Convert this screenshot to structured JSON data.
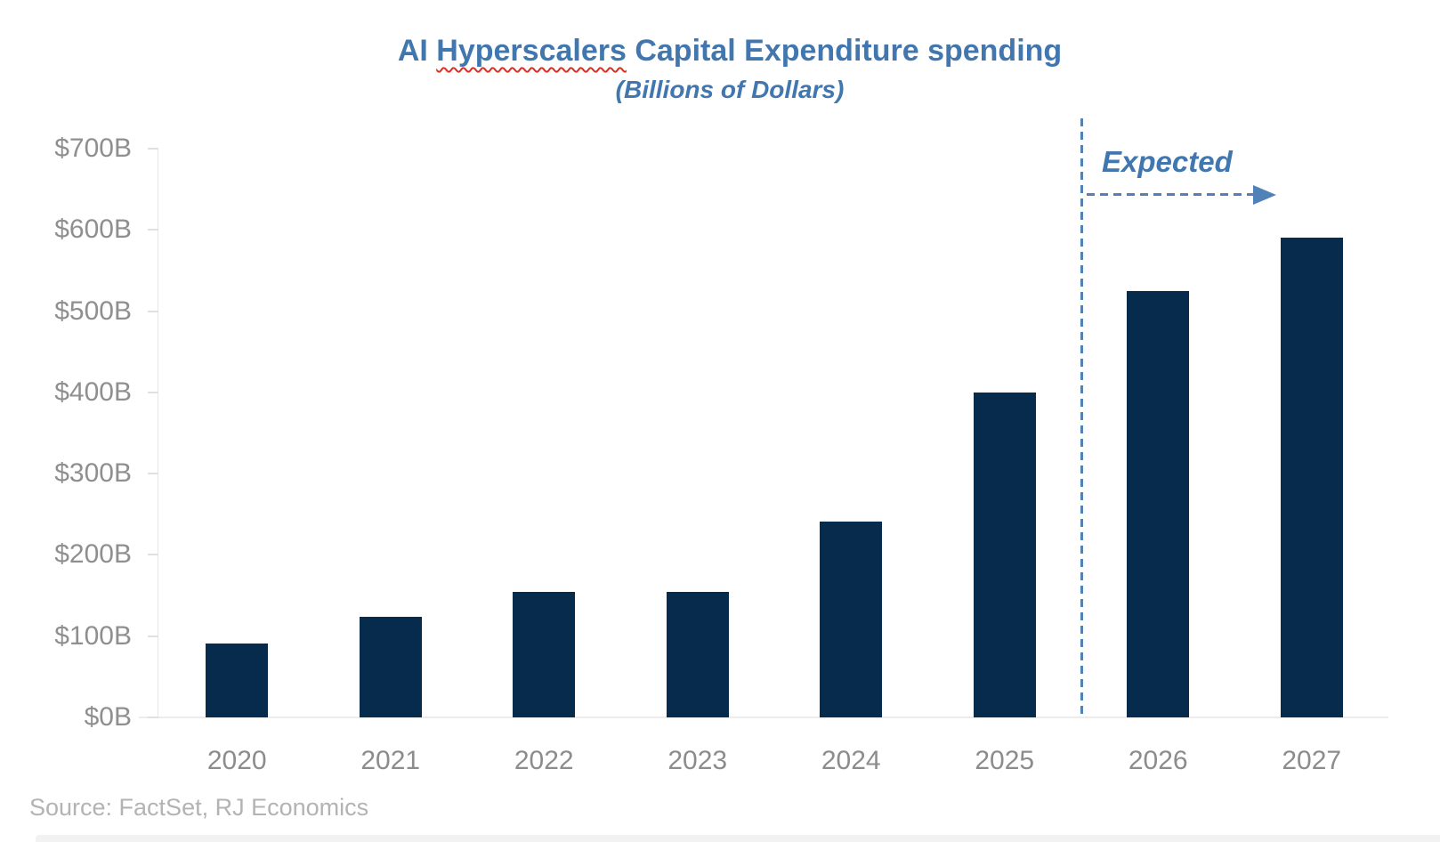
{
  "title": {
    "prefix": "AI ",
    "misspelled_word": "Hyperscalers",
    "suffix": " Capital Expenditure spending",
    "subtitle": "(Billions of Dollars)"
  },
  "source_note": "Source: FactSet, RJ Economics",
  "colors": {
    "bar": "#072B4D",
    "title_blue": "#4177AE",
    "annotation_blue": "#5082B8",
    "axis_label_gray": "#8c8c8c",
    "source_gray": "#b3b3b3",
    "spellcheck_red": "#d93025",
    "axis_line_gray": "#e7e7e7"
  },
  "chart_data": {
    "type": "bar",
    "title": "AI Hyperscalers Capital Expenditure spending",
    "subtitle": "(Billions of Dollars)",
    "xlabel": "",
    "ylabel": "",
    "unit": "billions of US dollars",
    "categories": [
      "2020",
      "2021",
      "2022",
      "2023",
      "2024",
      "2025",
      "2026",
      "2027"
    ],
    "values": [
      91,
      124,
      154,
      155,
      241,
      400,
      525,
      590
    ],
    "ylim": [
      0,
      700
    ],
    "y_tick_step": 100,
    "y_tick_labels": [
      "$0B",
      "$100B",
      "$200B",
      "$300B",
      "$400B",
      "$500B",
      "$600B",
      "$700B"
    ],
    "grid": false,
    "legend": "none",
    "bar_color": "#072B4D",
    "annotation": {
      "text": "Expected",
      "divider_between": [
        "2025",
        "2026"
      ],
      "applies_to": [
        "2026",
        "2027"
      ]
    }
  }
}
